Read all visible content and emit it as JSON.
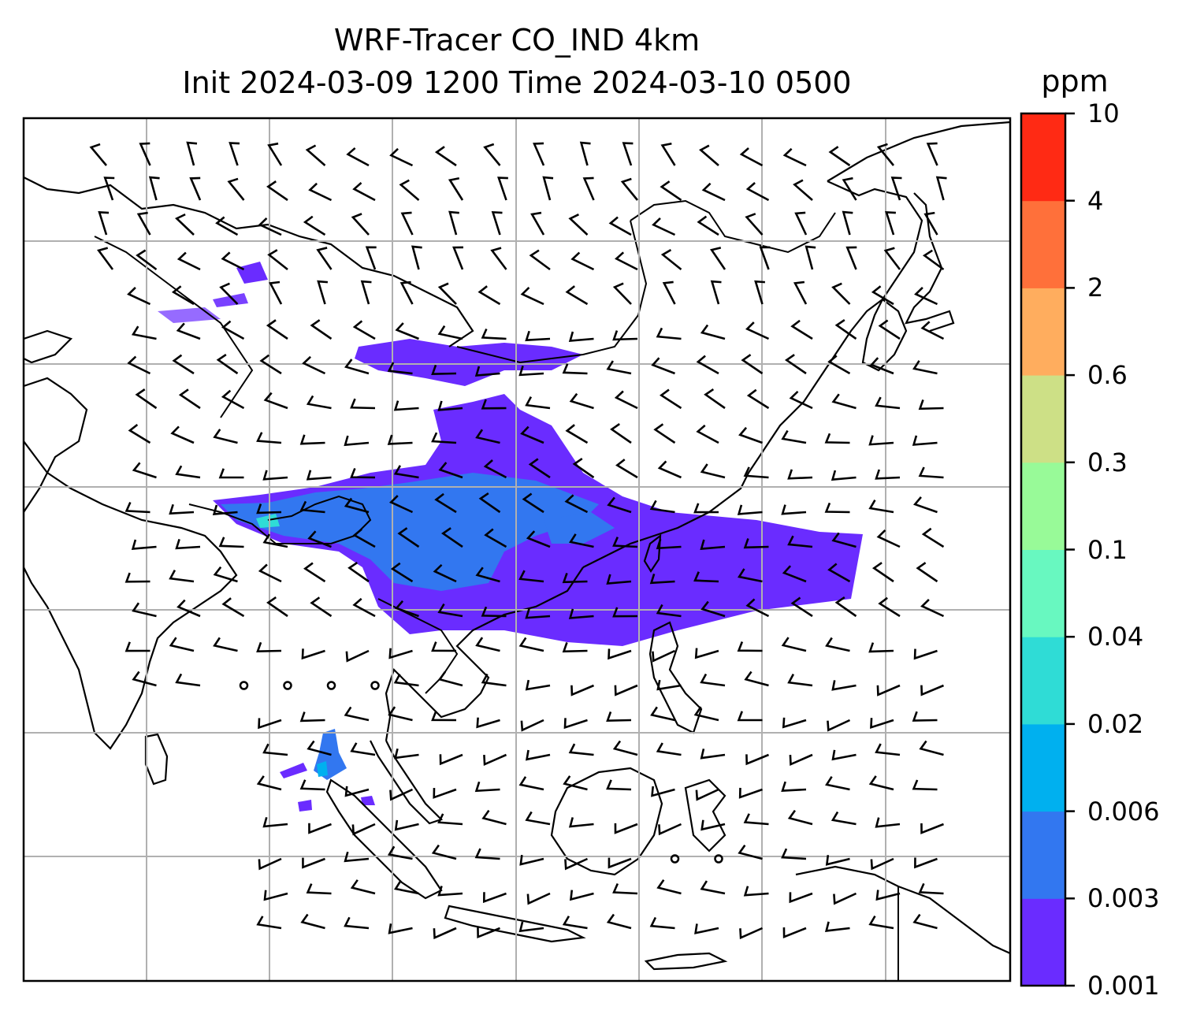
{
  "title": {
    "line1": "WRF-Tracer CO_IND 4km",
    "line2": "Init 2024-03-09 1200 Time 2024-03-10 0500"
  },
  "colorbar": {
    "units": "ppm",
    "levels": [
      "0.001",
      "0.003",
      "0.006",
      "0.02",
      "0.04",
      "0.1",
      "0.3",
      "0.6",
      "2",
      "4",
      "10"
    ],
    "colors": [
      "#6a2cff",
      "#3277f0",
      "#00b0ef",
      "#2fdcd6",
      "#68f8c0",
      "#98fa98",
      "#cde086",
      "#ffad5e",
      "#ff703a",
      "#ff2a14"
    ]
  },
  "map": {
    "gridlines": true,
    "wind_barbs": true,
    "field": "CO_IND tracer"
  }
}
